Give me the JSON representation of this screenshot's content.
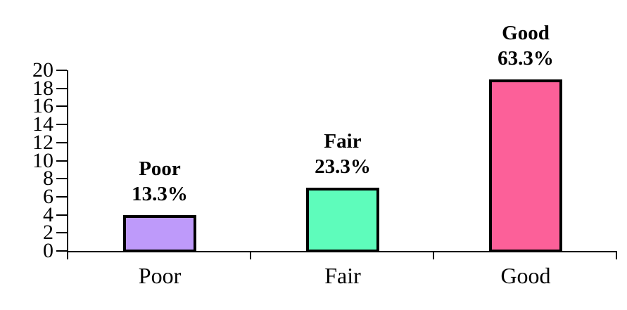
{
  "chart_data": {
    "type": "bar",
    "categories": [
      "Poor",
      "Fair",
      "Good"
    ],
    "values": [
      4,
      7,
      19
    ],
    "percent_labels": [
      "13.3%",
      "23.3%",
      "63.3%"
    ],
    "bar_colors": [
      "#BE9AFA",
      "#5EFCBB",
      "#FC6099"
    ],
    "bar_border_color": "#000000",
    "axis_color": "#000000",
    "background_color": "#FFFFFF",
    "yticks": [
      0,
      2,
      4,
      6,
      8,
      10,
      12,
      14,
      16,
      18,
      20
    ],
    "ylim": [
      0,
      20
    ],
    "grid": false,
    "legend_position": "none",
    "x_tick_count": 4
  }
}
